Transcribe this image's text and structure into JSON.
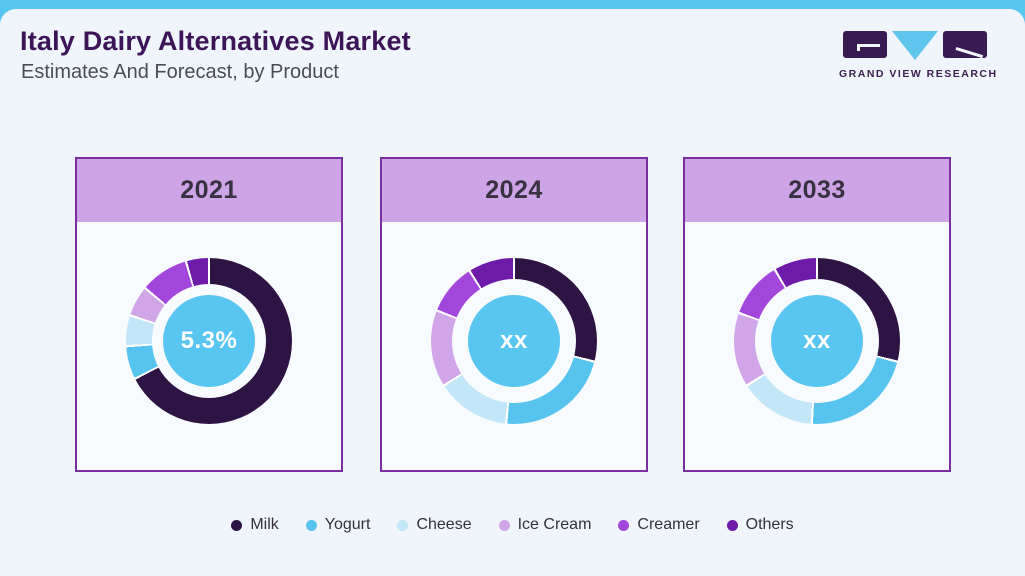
{
  "page": {
    "title": "Italy Dairy Alternatives Market",
    "subtitle": "Estimates And Forecast, by Product",
    "brand_name": "GRAND VIEW RESEARCH"
  },
  "colors": {
    "topbar_blue": "#57c7f1",
    "surface_bg": "#eff5fa",
    "card_border_purple": "#7b2f9e",
    "card_header_bg": "#cda4e6",
    "title_purple": "#3d1458",
    "center_circle_blue": "#58c6f0",
    "center_text": "#ffffff"
  },
  "legend": [
    {
      "label": "Milk",
      "color": "#2e1345"
    },
    {
      "label": "Yogurt",
      "color": "#56c4ee"
    },
    {
      "label": "Cheese",
      "color": "#c3e6f8"
    },
    {
      "label": "Ice Cream",
      "color": "#d1a6e9"
    },
    {
      "label": "Creamer",
      "color": "#a246dc"
    },
    {
      "label": "Others",
      "color": "#6d1ba8"
    }
  ],
  "chart_data": [
    {
      "type": "pie",
      "variant": "donut",
      "year": "2021",
      "center_label": "5.3%",
      "legend_position": "bottom",
      "series": [
        {
          "name": "Milk",
          "share_pct": 67.5
        },
        {
          "name": "Yogurt",
          "share_pct": 6.5
        },
        {
          "name": "Cheese",
          "share_pct": 6.0
        },
        {
          "name": "Ice Cream",
          "share_pct": 6.0
        },
        {
          "name": "Creamer",
          "share_pct": 9.5
        },
        {
          "name": "Others",
          "share_pct": 4.5
        }
      ]
    },
    {
      "type": "pie",
      "variant": "donut",
      "year": "2024",
      "center_label": "xx",
      "legend_position": "bottom",
      "series": [
        {
          "name": "Milk",
          "share_pct": 29.0
        },
        {
          "name": "Yogurt",
          "share_pct": 22.5
        },
        {
          "name": "Cheese",
          "share_pct": 14.5
        },
        {
          "name": "Ice Cream",
          "share_pct": 15.0
        },
        {
          "name": "Creamer",
          "share_pct": 10.0
        },
        {
          "name": "Others",
          "share_pct": 9.0
        }
      ]
    },
    {
      "type": "pie",
      "variant": "donut",
      "year": "2033",
      "center_label": "xx",
      "legend_position": "bottom",
      "series": [
        {
          "name": "Milk",
          "share_pct": 29.0
        },
        {
          "name": "Yogurt",
          "share_pct": 22.0
        },
        {
          "name": "Cheese",
          "share_pct": 15.0
        },
        {
          "name": "Ice Cream",
          "share_pct": 14.5
        },
        {
          "name": "Creamer",
          "share_pct": 11.0
        },
        {
          "name": "Others",
          "share_pct": 8.5
        }
      ]
    }
  ]
}
